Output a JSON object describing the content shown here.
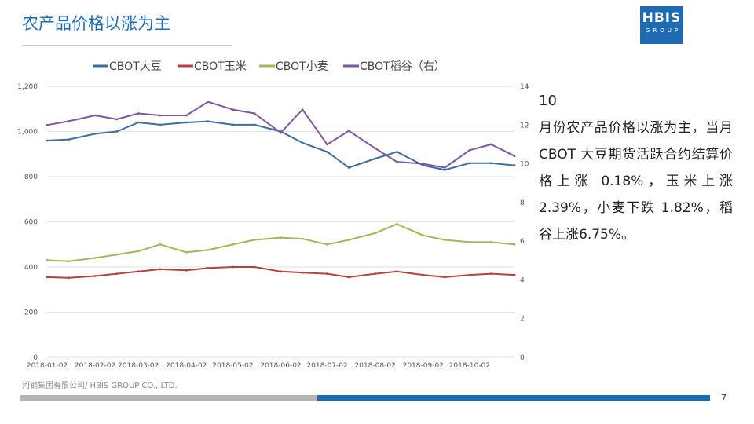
{
  "header": {
    "title": "农产品价格以涨为主"
  },
  "logo": {
    "line1": "HBIS",
    "line2": "GROUP"
  },
  "side_text": {
    "number": "10",
    "body": "月份农产品价格以涨为主，当月 CBOT 大豆期货活跃合约结算价格上涨 0.18%，玉米上涨 2.39%，小麦下跌 1.82%，稻谷上涨6.75%。"
  },
  "footer": {
    "company": "河钢集团有限公司/ HBIS GROUP CO., LTD.",
    "page": "7"
  },
  "colors": {
    "soy": "#3e6e9b",
    "corn": "#b0433f",
    "wheat": "#9db85a",
    "rice": "#7b5a9c",
    "accent": "#1f6bb3"
  },
  "chart_data": {
    "type": "line",
    "title": "",
    "legend": [
      "CBOT大豆",
      "CBOT玉米",
      "CBOT小麦",
      "CBOT稻谷（右）"
    ],
    "legend_position": "top",
    "x": [
      "2018-01-02",
      "2018-01-16",
      "2018-02-02",
      "2018-02-16",
      "2018-03-02",
      "2018-03-16",
      "2018-04-02",
      "2018-04-16",
      "2018-05-02",
      "2018-05-16",
      "2018-06-02",
      "2018-06-16",
      "2018-07-02",
      "2018-07-16",
      "2018-08-02",
      "2018-08-16",
      "2018-09-02",
      "2018-09-16",
      "2018-10-02",
      "2018-10-16",
      "2018-10-31"
    ],
    "x_tick_labels": [
      "2018-01-02",
      "2018-02-02",
      "2018-03-02",
      "2018-04-02",
      "2018-05-02",
      "2018-06-02",
      "2018-07-02",
      "2018-08-02",
      "2018-09-02",
      "2018-10-02"
    ],
    "left_axis": {
      "range": [
        0,
        1200
      ],
      "ticks": [
        "0",
        "200",
        "400",
        "600",
        "800",
        "1,000",
        "1,200"
      ]
    },
    "right_axis": {
      "range": [
        0,
        14
      ],
      "ticks": [
        "0",
        "2",
        "4",
        "6",
        "8",
        "10",
        "12",
        "14"
      ]
    },
    "grid": true,
    "series": [
      {
        "name": "CBOT大豆",
        "axis": "left",
        "color": "#3e6e9b",
        "values": [
          960,
          965,
          990,
          1000,
          1040,
          1030,
          1040,
          1045,
          1030,
          1030,
          1000,
          950,
          910,
          840,
          880,
          910,
          850,
          830,
          860,
          860,
          850
        ]
      },
      {
        "name": "CBOT玉米",
        "axis": "left",
        "color": "#b0433f",
        "values": [
          355,
          352,
          360,
          370,
          380,
          390,
          385,
          395,
          400,
          400,
          380,
          375,
          370,
          355,
          370,
          380,
          365,
          355,
          365,
          370,
          365
        ]
      },
      {
        "name": "CBOT小麦",
        "axis": "left",
        "color": "#9db85a",
        "values": [
          430,
          425,
          440,
          455,
          470,
          500,
          465,
          475,
          500,
          520,
          530,
          525,
          500,
          520,
          550,
          590,
          540,
          520,
          510,
          510,
          500
        ]
      },
      {
        "name": "CBOT稻谷（右）",
        "axis": "right",
        "color": "#7b5a9c",
        "values": [
          12.0,
          12.2,
          12.5,
          12.3,
          12.6,
          12.5,
          12.5,
          13.2,
          12.8,
          12.6,
          11.6,
          12.8,
          11.0,
          11.7,
          10.8,
          10.1,
          10.0,
          9.8,
          10.7,
          11.0,
          10.4
        ]
      }
    ]
  }
}
